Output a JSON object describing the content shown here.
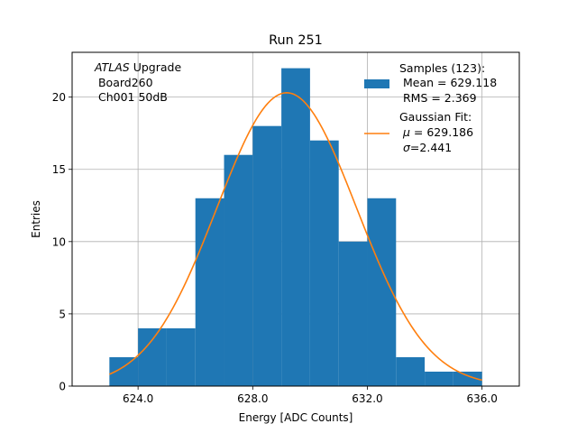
{
  "chart_data": {
    "type": "bar",
    "title": "Run 251",
    "xlabel": "Energy [ADC Counts]",
    "ylabel": "Entries",
    "xlim": [
      621.7,
      637.3
    ],
    "ylim": [
      0,
      23.1
    ],
    "x_ticks": [
      624,
      628,
      632,
      636
    ],
    "x_tick_labels": [
      "624.0",
      "628.0",
      "632.0",
      "636.0"
    ],
    "y_ticks": [
      0,
      5,
      10,
      15,
      20
    ],
    "y_tick_labels": [
      "0",
      "5",
      "10",
      "15",
      "20"
    ],
    "grid": true,
    "legend_position": "top-right",
    "annotation": {
      "italic_word": "ATLAS",
      "rest_of_first_line": " Upgrade",
      "line2": " Board260",
      "line3": " Ch001 50dB"
    },
    "histogram": {
      "color": "#1f77b4",
      "bin_edges": [
        623,
        624,
        625,
        626,
        627,
        628,
        629,
        630,
        631,
        632,
        633,
        634,
        635,
        636
      ],
      "counts": [
        2,
        4,
        4,
        13,
        16,
        18,
        22,
        17,
        10,
        13,
        2,
        1,
        1
      ],
      "legend": {
        "line1": "Samples (123):",
        "line2": " Mean = 629.118",
        "line3": " RMS = 2.369"
      }
    },
    "fit": {
      "color": "#ff7f0e",
      "mu": 629.186,
      "sigma": 2.441,
      "amplitude": 20.3,
      "x_range": [
        623,
        636
      ],
      "legend": {
        "line1": "Gaussian Fit:",
        "mu_symbol": "μ",
        "mu_text": " = 629.186",
        "sigma_symbol": "σ",
        "sigma_text": "=2.441"
      }
    }
  }
}
